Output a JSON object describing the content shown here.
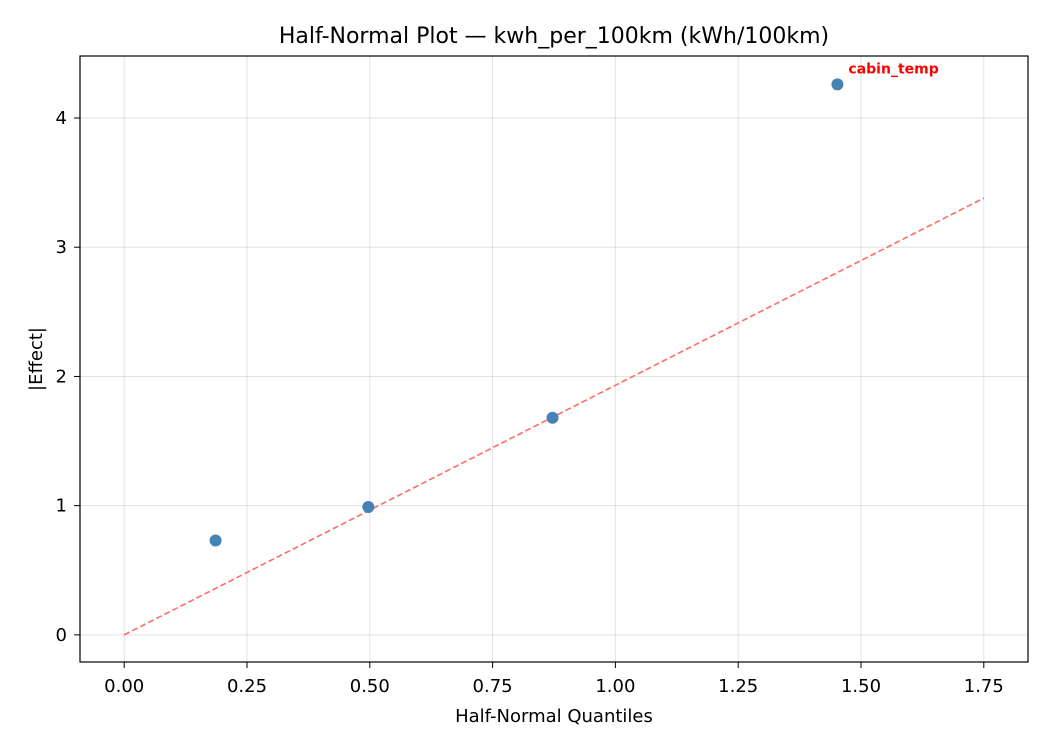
{
  "chart_data": {
    "type": "scatter",
    "title": "Half-Normal Plot — kwh_per_100km (kWh/100km)",
    "xlabel": "Half-Normal Quantiles",
    "ylabel": "|Effect|",
    "xlim": [
      -0.09,
      1.84
    ],
    "ylim": [
      -0.21,
      4.48
    ],
    "xticks": [
      0.0,
      0.25,
      0.5,
      0.75,
      1.0,
      1.25,
      1.5,
      1.75
    ],
    "xtick_labels": [
      "0.00",
      "0.25",
      "0.50",
      "0.75",
      "1.00",
      "1.25",
      "1.50",
      "1.75"
    ],
    "yticks": [
      0,
      1,
      2,
      3,
      4
    ],
    "ytick_labels": [
      "0",
      "1",
      "2",
      "3",
      "4"
    ],
    "grid": true,
    "points": [
      {
        "x": 0.186,
        "y": 0.73
      },
      {
        "x": 0.497,
        "y": 0.99
      },
      {
        "x": 0.872,
        "y": 1.68
      },
      {
        "x": 1.452,
        "y": 4.26
      }
    ],
    "reference_line": {
      "x": [
        0.0,
        1.75
      ],
      "y": [
        0.0,
        3.38
      ],
      "style": "dashed"
    },
    "annotations": [
      {
        "text": "cabin_temp",
        "x": 1.452,
        "y": 4.26
      }
    ],
    "colors": {
      "points": "#4682b4",
      "reference_line": "#ff6b6b",
      "annotation": "#ff0000"
    }
  }
}
